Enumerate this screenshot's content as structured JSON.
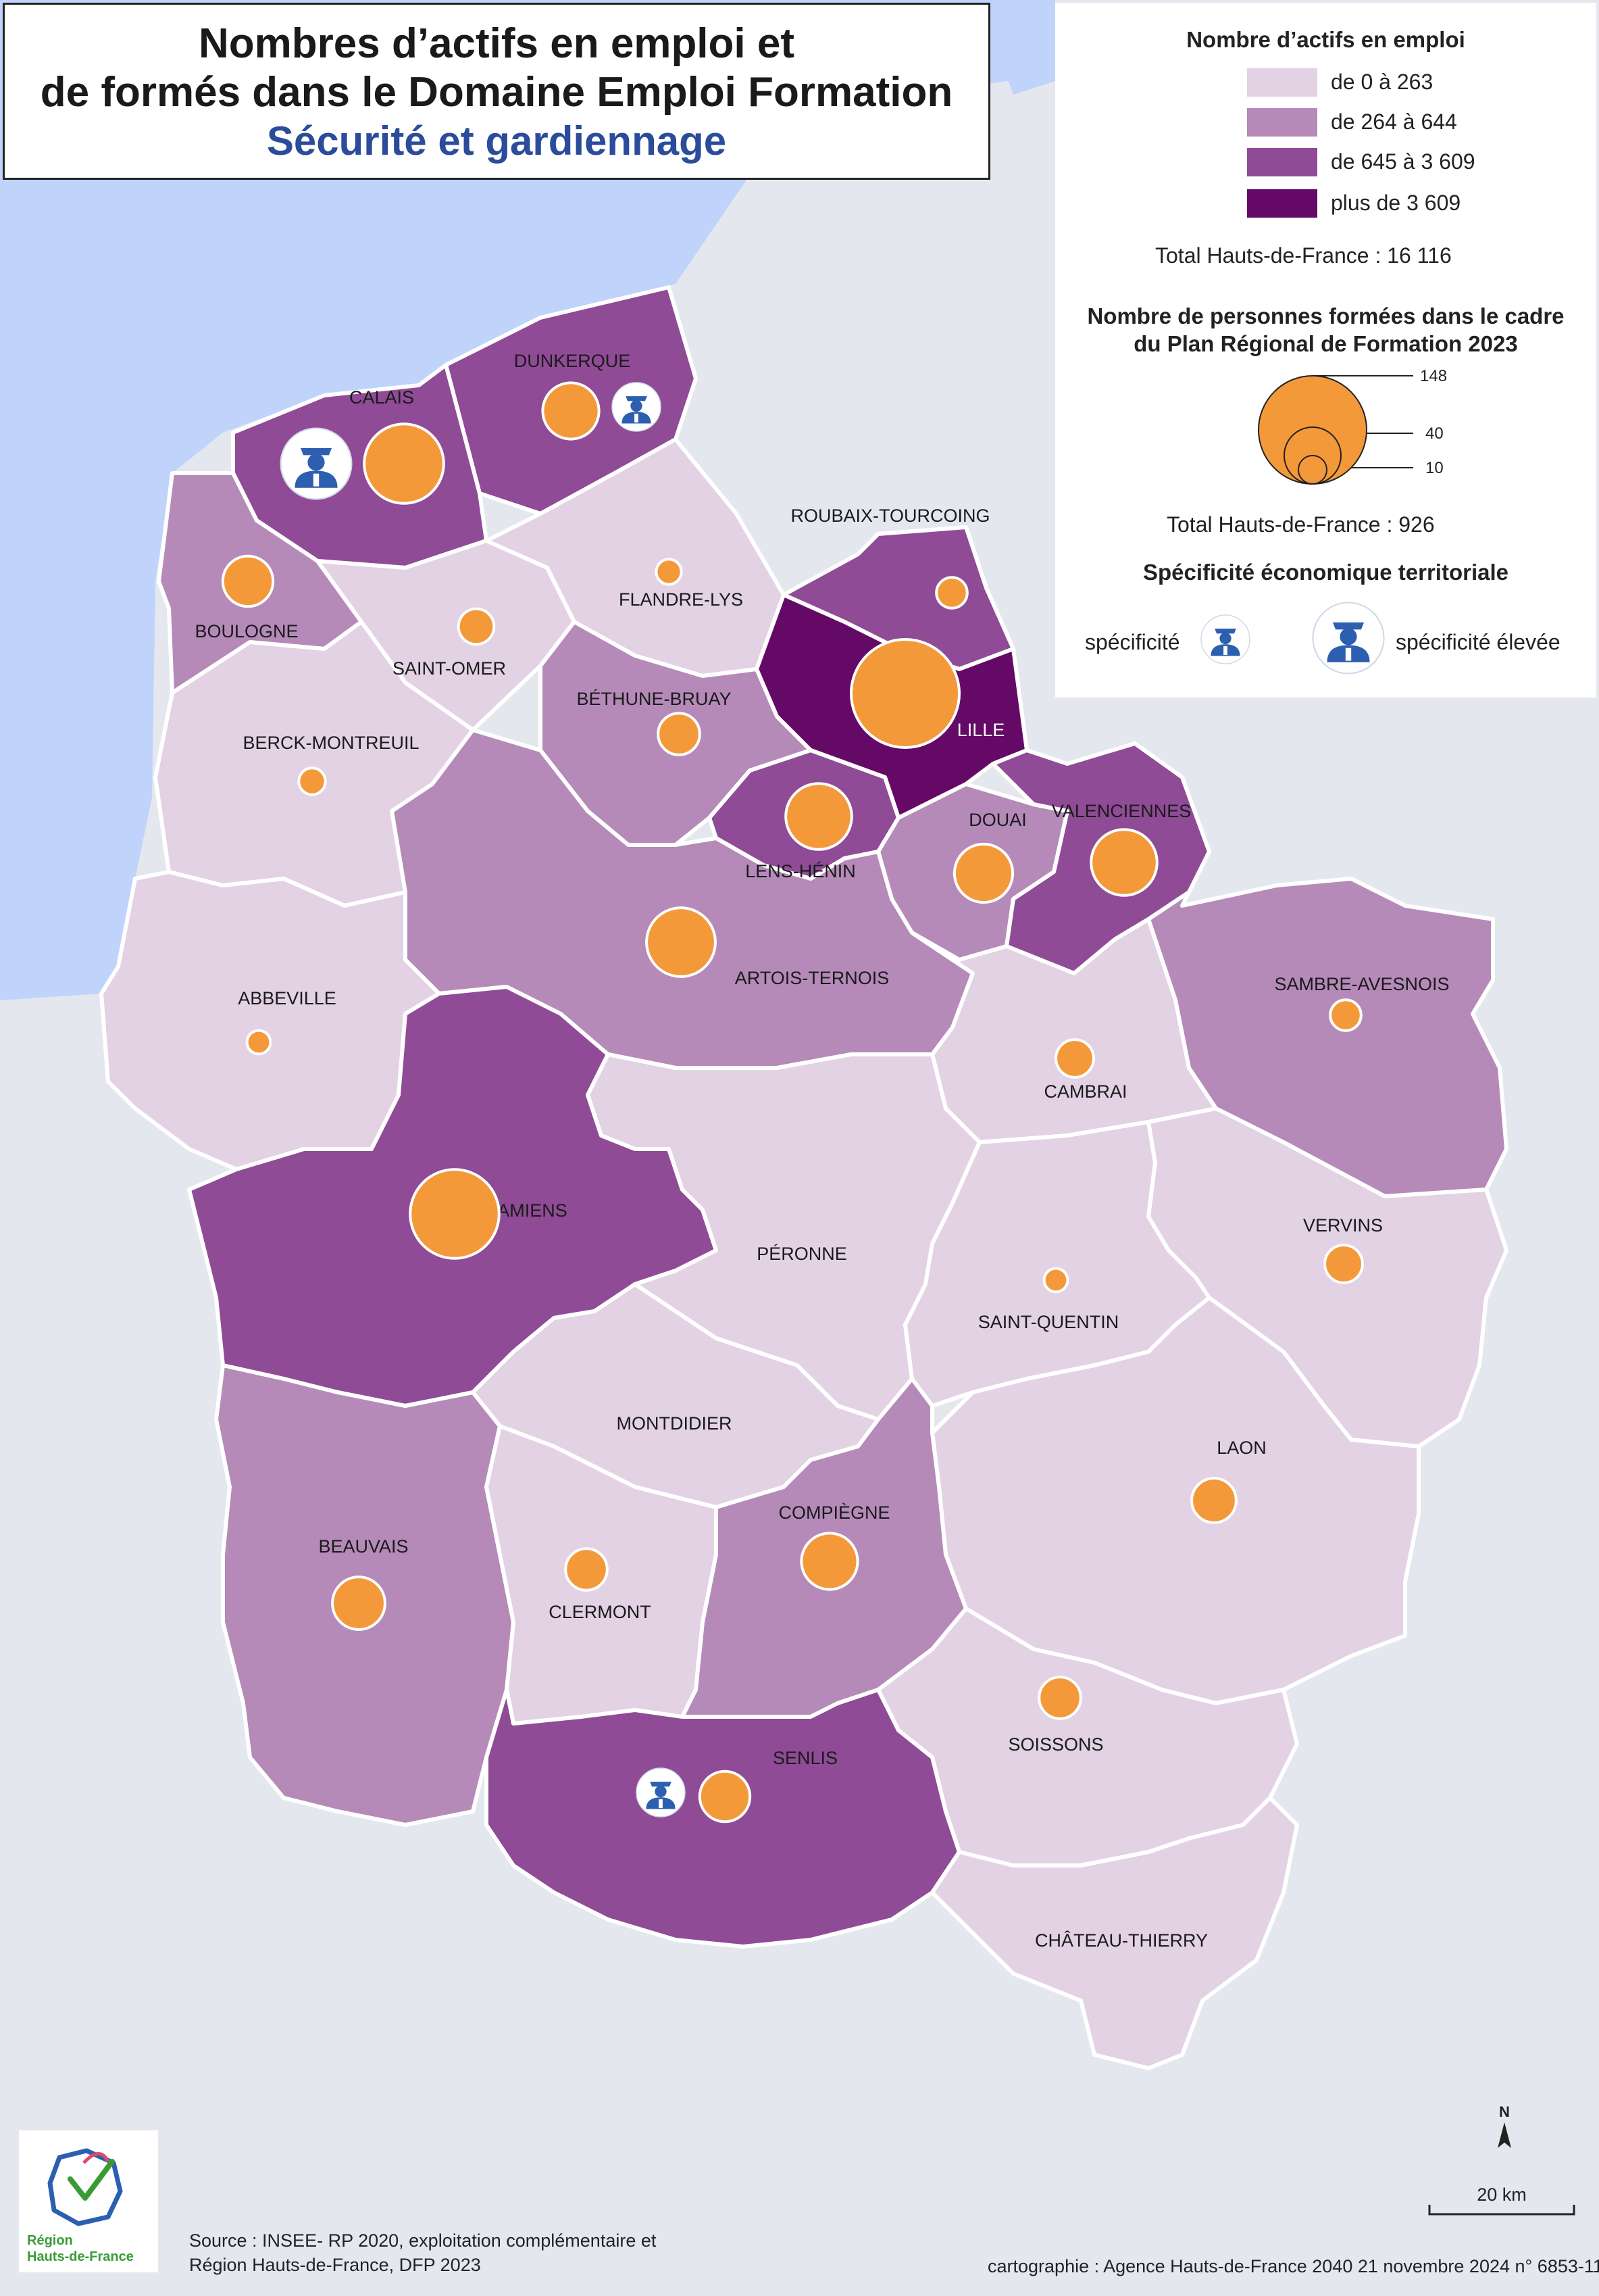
{
  "title": {
    "line1": "Nombres d’actifs en emploi et",
    "line2": "de formés dans le Domaine Emploi Formation",
    "subtitle": "Sécurité et gardiennage"
  },
  "legend": {
    "actifs_title": "Nombre d’actifs en emploi",
    "classes": [
      {
        "label": "de 0 à 263",
        "color": "#e2d2e4"
      },
      {
        "label": "de 264 à 644",
        "color": "#b58ab9"
      },
      {
        "label": "de 645 à 3 609",
        "color": "#8f4b95"
      },
      {
        "label": "plus de 3 609",
        "color": "#640a66"
      }
    ],
    "actifs_total": "Total Hauts-de-France : 16 116",
    "formes_title_1": "Nombre de personnes formées dans le cadre",
    "formes_title_2": "du Plan Régional de Formation 2023",
    "circle_values": [
      "148",
      "40",
      "10"
    ],
    "formes_total": "Total Hauts-de-France :  926",
    "specificite_title": "Spécificité économique territoriale",
    "specificite": "spécificité",
    "specificite_elevee": "spécificité élevée"
  },
  "colors": {
    "sea": "#bfd3fb",
    "land_outside": "#e4e8ee",
    "circle_fill": "#f4993a",
    "icon_blue": "#2d5fb0"
  },
  "zones": [
    {
      "name": "DUNKERQUE",
      "class": 2,
      "trained": 40,
      "specificite": "spécificité"
    },
    {
      "name": "CALAIS",
      "class": 2,
      "trained": 80,
      "specificite": "spécificité élevée"
    },
    {
      "name": "BOULOGNE",
      "class": 1,
      "trained": 32
    },
    {
      "name": "SAINT-OMER",
      "class": 0,
      "trained": 16
    },
    {
      "name": "FLANDRE-LYS",
      "class": 0,
      "trained": 8
    },
    {
      "name": "ROUBAIX-TOURCOING",
      "class": 2,
      "trained": 12
    },
    {
      "name": "LILLE",
      "class": 3,
      "trained": 148
    },
    {
      "name": "BÉTHUNE-BRUAY",
      "class": 1,
      "trained": 22
    },
    {
      "name": "BERCK-MONTREUIL",
      "class": 0,
      "trained": 9
    },
    {
      "name": "LENS-HÉNIN",
      "class": 2,
      "trained": 55
    },
    {
      "name": "DOUAI",
      "class": 1,
      "trained": 43
    },
    {
      "name": "VALENCIENNES",
      "class": 2,
      "trained": 55
    },
    {
      "name": "ARTOIS-TERNOIS",
      "class": 1,
      "trained": 60
    },
    {
      "name": "ABBEVILLE",
      "class": 0,
      "trained": 7
    },
    {
      "name": "SAMBRE-AVESNOIS",
      "class": 1,
      "trained": 12
    },
    {
      "name": "CAMBRAI",
      "class": 0,
      "trained": 18
    },
    {
      "name": "AMIENS",
      "class": 2,
      "trained": 100
    },
    {
      "name": "PÉRONNE",
      "class": 0,
      "trained": 0
    },
    {
      "name": "SAINT-QUENTIN",
      "class": 0,
      "trained": 7
    },
    {
      "name": "VERVINS",
      "class": 0,
      "trained": 18
    },
    {
      "name": "MONTDIDIER",
      "class": 0,
      "trained": 0
    },
    {
      "name": "LAON",
      "class": 0,
      "trained": 25
    },
    {
      "name": "BEAUVAIS",
      "class": 1,
      "trained": 35
    },
    {
      "name": "CLERMONT",
      "class": 0,
      "trained": 22
    },
    {
      "name": "COMPIÈGNE",
      "class": 1,
      "trained": 40
    },
    {
      "name": "SOISSONS",
      "class": 0,
      "trained": 22
    },
    {
      "name": "SENLIS",
      "class": 2,
      "trained": 32,
      "specificite": "spécificité"
    },
    {
      "name": "CHÂTEAU-THIERRY",
      "class": 0,
      "trained": 0
    }
  ],
  "scale": {
    "label": "20 km",
    "north": "N"
  },
  "footer": {
    "source_1": "Source : INSEE- RP 2020, exploitation complémentaire et",
    "source_2": "Région Hauts-de-France, DFP 2023",
    "credit": "cartographie : Agence Hauts-de-France 2040  21 novembre 2024  n° 6853-11",
    "logo_1": "Région",
    "logo_2": "Hauts-de-France"
  }
}
